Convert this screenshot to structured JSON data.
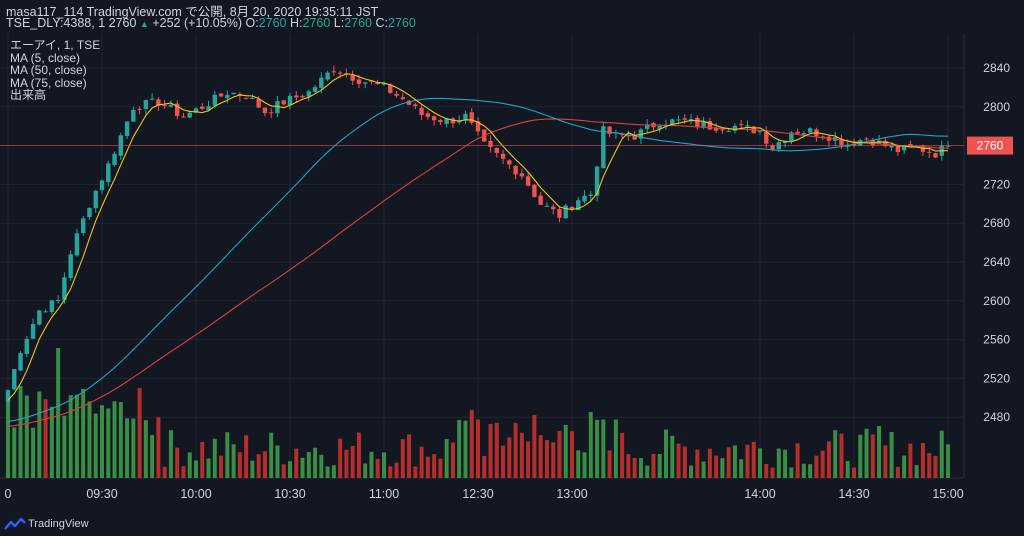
{
  "header": {
    "line1": "masa117_114 TradingView.com で公開, 8月 20, 2020 19:35:11 JST",
    "symbol": "TSE_DLY:4388, 1",
    "last": "2760",
    "arrow": "▲",
    "change": "+252 (+10.05%)",
    "o_label": "O:",
    "o_val": "2760",
    "h_label": "H:",
    "h_val": "2760",
    "l_label": "L:",
    "l_val": "2760",
    "c_label": "C:",
    "c_val": "2760"
  },
  "legend": {
    "title": "エーアイ, 1, TSE",
    "ma5": "MA (5, close)",
    "ma50": "MA (50, close)",
    "ma75": "MA (75, close)",
    "volume": "出来高"
  },
  "footer": {
    "brand": "TradingView"
  },
  "colors": {
    "background": "#131722",
    "up": "#26a69a",
    "down": "#ef5350",
    "ma5": "#f0c419",
    "ma50": "#1fa2c8",
    "ma75": "#d9423a",
    "vol_up": "#3d9b48",
    "vol_down": "#c6322c",
    "price_tag": "#ef5350"
  },
  "chart_data": {
    "type": "candlestick",
    "y_ticks": [
      2840,
      2800,
      2760,
      2720,
      2680,
      2640,
      2600,
      2560,
      2520,
      2480
    ],
    "ylim": [
      2460,
      2856
    ],
    "last_price": 2760,
    "x_ticks": [
      "0",
      "09:30",
      "10:00",
      "10:30",
      "11:00",
      "12:30",
      "13:00",
      "14:00",
      "14:30",
      "15:00"
    ],
    "x_tick_index": [
      0,
      15,
      30,
      45,
      60,
      75,
      90,
      120,
      135,
      150
    ],
    "x_count": 151,
    "grid": true,
    "close_anchors": [
      [
        0,
        2508
      ],
      [
        2,
        2550
      ],
      [
        5,
        2590
      ],
      [
        8,
        2600
      ],
      [
        10,
        2650
      ],
      [
        13,
        2700
      ],
      [
        16,
        2740
      ],
      [
        20,
        2800
      ],
      [
        24,
        2805
      ],
      [
        28,
        2790
      ],
      [
        31,
        2800
      ],
      [
        35,
        2815
      ],
      [
        38,
        2812
      ],
      [
        41,
        2795
      ],
      [
        44,
        2805
      ],
      [
        48,
        2815
      ],
      [
        52,
        2840
      ],
      [
        56,
        2828
      ],
      [
        60,
        2820
      ],
      [
        63,
        2808
      ],
      [
        66,
        2792
      ],
      [
        70,
        2785
      ],
      [
        73,
        2790
      ],
      [
        76,
        2760
      ],
      [
        79,
        2745
      ],
      [
        82,
        2730
      ],
      [
        85,
        2700
      ],
      [
        88,
        2688
      ],
      [
        91,
        2705
      ],
      [
        93,
        2710
      ],
      [
        95,
        2775
      ],
      [
        97,
        2770
      ],
      [
        100,
        2770
      ],
      [
        104,
        2785
      ],
      [
        108,
        2785
      ],
      [
        112,
        2780
      ],
      [
        116,
        2780
      ],
      [
        120,
        2775
      ],
      [
        122,
        2758
      ],
      [
        125,
        2775
      ],
      [
        128,
        2775
      ],
      [
        131,
        2770
      ],
      [
        134,
        2762
      ],
      [
        137,
        2768
      ],
      [
        140,
        2760
      ],
      [
        142,
        2755
      ],
      [
        145,
        2758
      ],
      [
        148,
        2752
      ],
      [
        150,
        2760
      ]
    ],
    "volume_scale_max": 100
  }
}
